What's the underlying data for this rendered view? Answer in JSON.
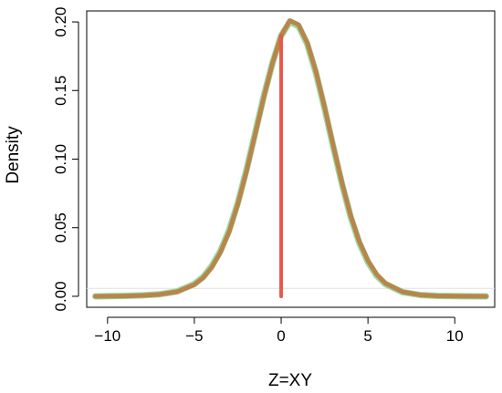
{
  "chart_data": {
    "type": "line",
    "title": "",
    "xlabel": "Z=XY",
    "ylabel": "Density",
    "xlim": [
      -11.2,
      12.3
    ],
    "ylim": [
      -0.008,
      0.208
    ],
    "xticks": [
      -10,
      -5,
      0,
      5,
      10
    ],
    "xtick_labels": [
      "−10",
      "−5",
      "0",
      "5",
      "10"
    ],
    "yticks": [
      0.0,
      0.05,
      0.1,
      0.15,
      0.2
    ],
    "ytick_labels": [
      "0.00",
      "0.05",
      "0.10",
      "0.15",
      "0.20"
    ],
    "grid": false,
    "legend": "none",
    "series": [
      {
        "color": "#9ed6a3",
        "x": [
          -10.7,
          -9,
          -8,
          -7,
          -6,
          -5,
          -4.5,
          -4,
          -3.5,
          -3,
          -2.5,
          -2,
          -1.5,
          -1,
          -0.5,
          0,
          0.5,
          1,
          1.5,
          2,
          2.5,
          3,
          3.5,
          4,
          4.5,
          5,
          5.5,
          6,
          7,
          8,
          9,
          10,
          11.8
        ],
        "y": [
          0.0,
          0.0003,
          0.0007,
          0.0015,
          0.0035,
          0.009,
          0.014,
          0.022,
          0.033,
          0.048,
          0.068,
          0.092,
          0.119,
          0.146,
          0.17,
          0.19,
          0.2,
          0.197,
          0.184,
          0.163,
          0.137,
          0.109,
          0.082,
          0.058,
          0.039,
          0.025,
          0.015,
          0.009,
          0.003,
          0.001,
          0.0003,
          0.0001,
          0.0
        ]
      },
      {
        "color": "#b8864a",
        "x": [
          -10.7,
          -9,
          -8,
          -7,
          -6,
          -5,
          -4.5,
          -4,
          -3.5,
          -3,
          -2.5,
          -2,
          -1.5,
          -1,
          -0.5,
          0,
          0.5,
          1,
          1.5,
          2,
          2.5,
          3,
          3.5,
          4,
          4.5,
          5,
          5.5,
          6,
          7,
          8,
          9,
          10,
          11.8
        ],
        "y": [
          0.0,
          0.0002,
          0.0006,
          0.0014,
          0.0033,
          0.0085,
          0.0135,
          0.021,
          0.032,
          0.047,
          0.067,
          0.091,
          0.118,
          0.145,
          0.17,
          0.19,
          0.201,
          0.198,
          0.185,
          0.164,
          0.138,
          0.11,
          0.083,
          0.059,
          0.04,
          0.026,
          0.016,
          0.0095,
          0.0032,
          0.001,
          0.0003,
          0.0001,
          0.0
        ]
      },
      {
        "color": "#e8594a",
        "x": [
          0.0,
          0.0
        ],
        "y": [
          0.0,
          0.19
        ]
      }
    ]
  }
}
